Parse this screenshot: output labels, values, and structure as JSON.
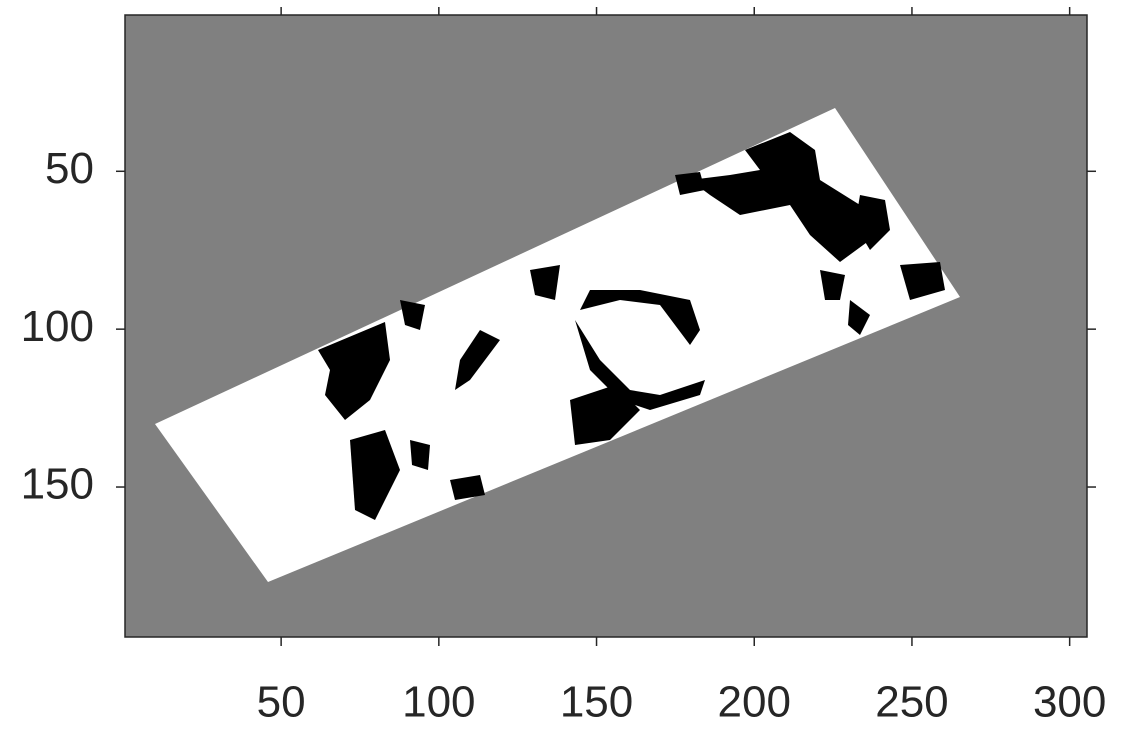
{
  "chart_data": {
    "type": "image",
    "xlim": [
      0.5,
      305.5
    ],
    "ylim": [
      0.5,
      197.5
    ],
    "y_reversed": true,
    "xticks": [
      50,
      100,
      150,
      200,
      250,
      300
    ],
    "yticks": [
      50,
      100,
      150
    ],
    "background_color": "#808080",
    "foreground_color": "#ffffff",
    "feature_color": "#000000"
  }
}
